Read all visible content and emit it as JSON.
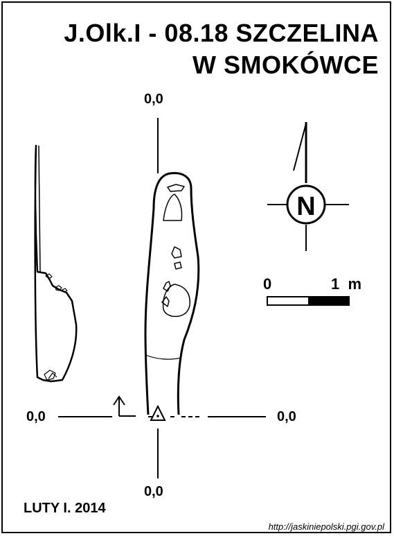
{
  "title": {
    "line1": "J.Olk.I - 08.18  SZCZELINA",
    "line2": "W SMOKÓWCE"
  },
  "coordinates": {
    "top": "0,0",
    "bottom": "0,0",
    "left": "0,0",
    "right": "0,0"
  },
  "scale_bar": {
    "start_label": "0",
    "end_label": "1  m"
  },
  "north_arrow": {
    "letter": "N"
  },
  "author": "LUTY I. 2014",
  "source_url": "http://jaskiniepolski.pgi.gov.pl"
}
